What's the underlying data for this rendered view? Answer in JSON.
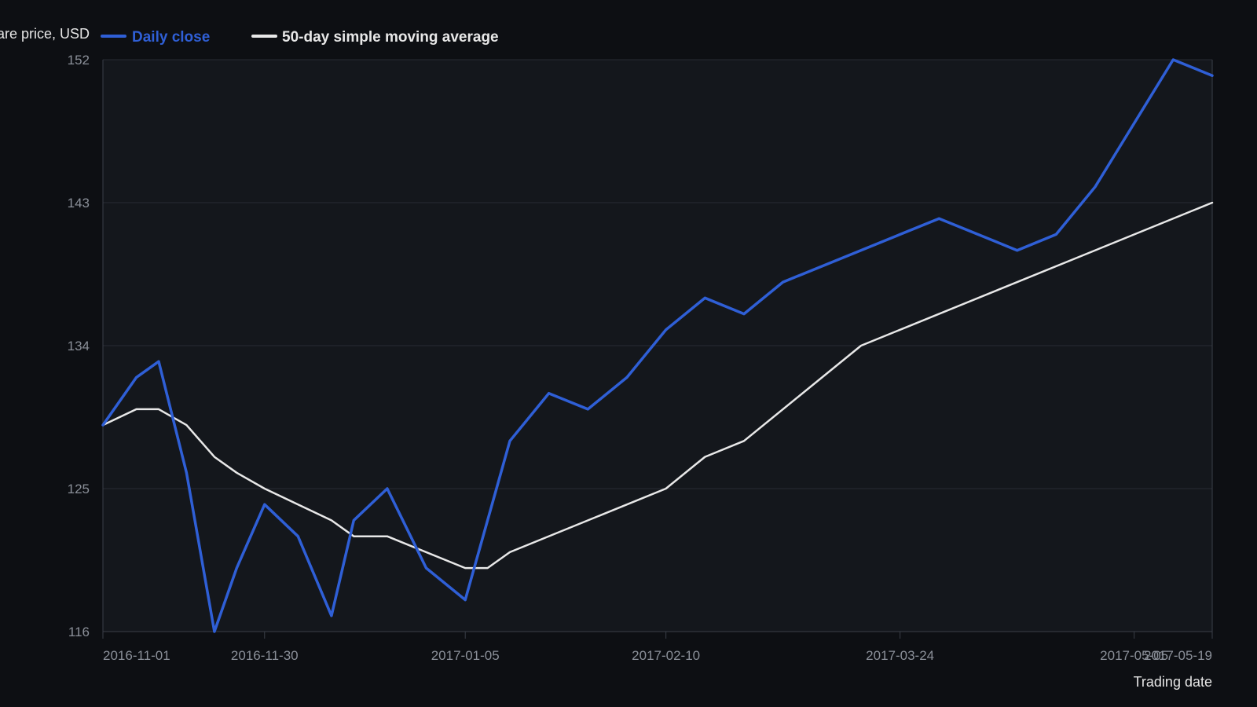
{
  "colors": {
    "background": "#0d0f13",
    "plot_background": "#14171c",
    "grid": "#272b33",
    "axis": "#3a3f48",
    "tick_text": "#8b9099",
    "close_series": "#2f5fd6",
    "sma_series": "#e8e8e8",
    "axis_title": "#e6e6e6"
  },
  "chart_data": {
    "type": "line",
    "title": "",
    "ylabel": "Share price, USD",
    "xlabel": "Trading date",
    "ylim": [
      116,
      152
    ],
    "xlim": [
      "2016-11-01",
      "2017-05-19"
    ],
    "grid": true,
    "legend_position": "top-left",
    "y_ticks": [
      116,
      125,
      134,
      143,
      152
    ],
    "x_ticks": [
      {
        "date": "2016-11-01",
        "label": "2016-11-01"
      },
      {
        "date": "2016-11-30",
        "label": "2016-11-30"
      },
      {
        "date": "2017-01-05",
        "label": "2017-01-05"
      },
      {
        "date": "2017-02-10",
        "label": "2017-02-10"
      },
      {
        "date": "2017-03-24",
        "label": "2017-03-24"
      },
      {
        "date": "2017-05-05",
        "label": "2017-05-05"
      },
      {
        "date": "2017-05-19",
        "label": "2017-05-19"
      }
    ],
    "series": [
      {
        "name": "Daily close",
        "color": "#2f5fd6",
        "points": [
          {
            "x": "2016-11-01",
            "y": 129
          },
          {
            "x": "2016-11-07",
            "y": 132
          },
          {
            "x": "2016-11-11",
            "y": 133
          },
          {
            "x": "2016-11-16",
            "y": 126
          },
          {
            "x": "2016-11-21",
            "y": 116
          },
          {
            "x": "2016-11-25",
            "y": 120
          },
          {
            "x": "2016-11-30",
            "y": 124
          },
          {
            "x": "2016-12-06",
            "y": 122
          },
          {
            "x": "2016-12-12",
            "y": 117
          },
          {
            "x": "2016-12-16",
            "y": 123
          },
          {
            "x": "2016-12-22",
            "y": 125
          },
          {
            "x": "2016-12-29",
            "y": 120
          },
          {
            "x": "2017-01-05",
            "y": 118
          },
          {
            "x": "2017-01-13",
            "y": 128
          },
          {
            "x": "2017-01-20",
            "y": 131
          },
          {
            "x": "2017-01-27",
            "y": 130
          },
          {
            "x": "2017-02-03",
            "y": 132
          },
          {
            "x": "2017-02-10",
            "y": 135
          },
          {
            "x": "2017-02-17",
            "y": 137
          },
          {
            "x": "2017-02-24",
            "y": 136
          },
          {
            "x": "2017-03-03",
            "y": 138
          },
          {
            "x": "2017-03-24",
            "y": 141
          },
          {
            "x": "2017-03-31",
            "y": 142
          },
          {
            "x": "2017-04-14",
            "y": 140
          },
          {
            "x": "2017-04-21",
            "y": 141
          },
          {
            "x": "2017-04-28",
            "y": 144
          },
          {
            "x": "2017-05-12",
            "y": 152
          },
          {
            "x": "2017-05-19",
            "y": 151
          }
        ]
      },
      {
        "name": "50-day simple moving average",
        "color": "#e8e8e8",
        "points": [
          {
            "x": "2016-11-01",
            "y": 129
          },
          {
            "x": "2016-11-07",
            "y": 130
          },
          {
            "x": "2016-11-11",
            "y": 130
          },
          {
            "x": "2016-11-16",
            "y": 129
          },
          {
            "x": "2016-11-21",
            "y": 127
          },
          {
            "x": "2016-11-25",
            "y": 126
          },
          {
            "x": "2016-11-30",
            "y": 125
          },
          {
            "x": "2016-12-12",
            "y": 123
          },
          {
            "x": "2016-12-16",
            "y": 122
          },
          {
            "x": "2016-12-22",
            "y": 122
          },
          {
            "x": "2017-01-05",
            "y": 120
          },
          {
            "x": "2017-01-09",
            "y": 120
          },
          {
            "x": "2017-01-13",
            "y": 121
          },
          {
            "x": "2017-02-10",
            "y": 125
          },
          {
            "x": "2017-02-17",
            "y": 127
          },
          {
            "x": "2017-02-24",
            "y": 128
          },
          {
            "x": "2017-03-17",
            "y": 134
          },
          {
            "x": "2017-05-19",
            "y": 143
          }
        ]
      }
    ]
  }
}
